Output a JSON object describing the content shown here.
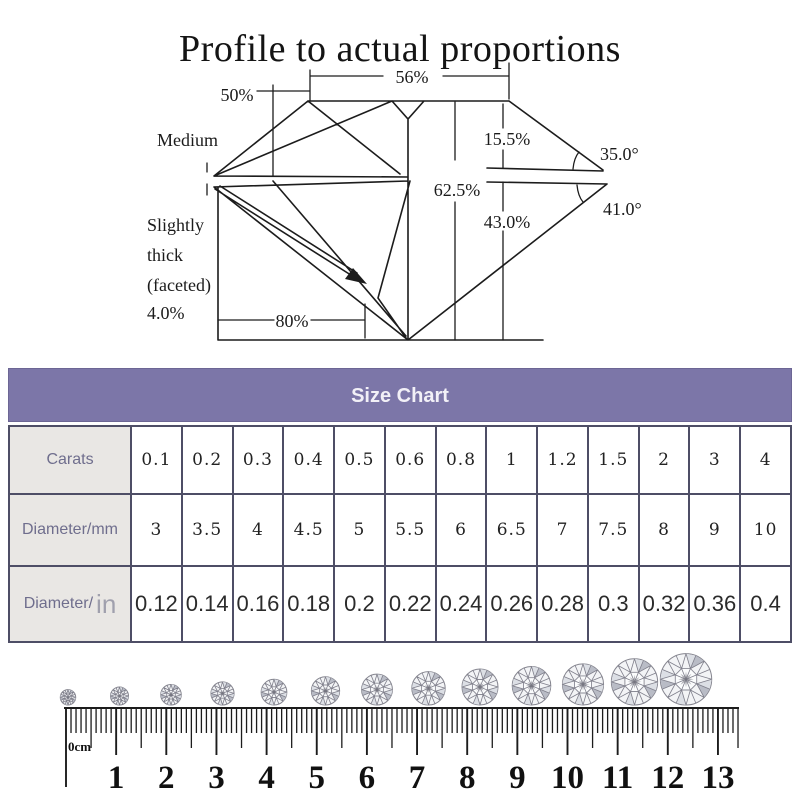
{
  "title": "Profile to actual proportions",
  "colors": {
    "accent_purple": "#7c76a8",
    "ink": "#1c1c1c"
  },
  "diagram": {
    "labels": {
      "table_width": "56%",
      "star_length": "50%",
      "girdle_thickness": "Medium",
      "crown_height": "15.5%",
      "crown_angle": "35.0°",
      "total_depth": "62.5%",
      "pavilion_angle": "41.0°",
      "pavilion_depth": "43.0%",
      "girdle_desc_1": "Slightly",
      "girdle_desc_2": "thick",
      "girdle_desc_3": "(faceted)",
      "girdle_pct": "4.0%",
      "lower_half": "80%"
    }
  },
  "size_chart": {
    "header": "Size Chart",
    "rows": [
      {
        "label": "Carats",
        "unit": "",
        "values": [
          "0.1",
          "0.2",
          "0.3",
          "0.4",
          "0.5",
          "0.6",
          "0.8",
          "1",
          "1.2",
          "1.5",
          "2",
          "3",
          "4"
        ]
      },
      {
        "label": "Diameter/mm",
        "unit": "",
        "values": [
          "3",
          "3.5",
          "4",
          "4.5",
          "5",
          "5.5",
          "6",
          "6.5",
          "7",
          "7.5",
          "8",
          "9",
          "10"
        ]
      },
      {
        "label": "Diameter/",
        "unit": "in",
        "values": [
          "0.12",
          "0.14",
          "0.16",
          "0.18",
          "0.2",
          "0.22",
          "0.24",
          "0.26",
          "0.28",
          "0.3",
          "0.32",
          "0.36",
          "0.4"
        ]
      }
    ]
  },
  "ruler": {
    "zero_label": "0cm",
    "numbers": [
      "1",
      "2",
      "3",
      "4",
      "5",
      "6",
      "7",
      "8",
      "9",
      "10",
      "11",
      "12",
      "13"
    ],
    "diamond_mm": [
      3,
      3.5,
      4,
      4.5,
      5,
      5.5,
      6,
      6.5,
      7,
      7.5,
      8,
      9,
      10
    ]
  }
}
